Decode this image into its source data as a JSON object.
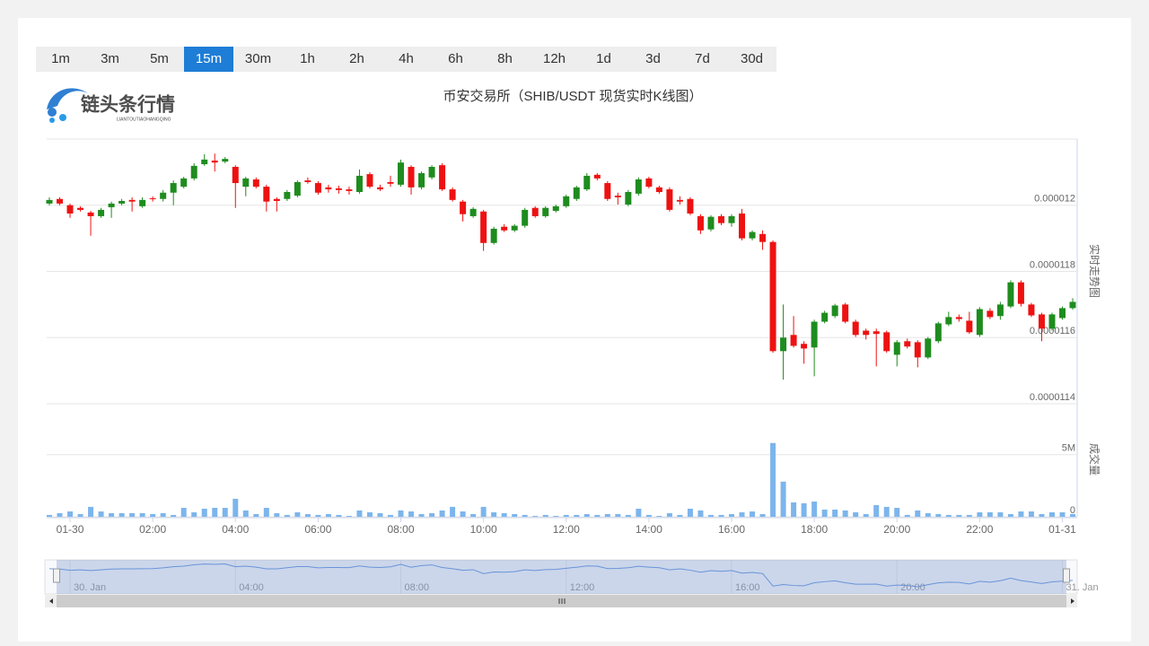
{
  "toolbar": {
    "intervals": [
      "1m",
      "3m",
      "5m",
      "15m",
      "30m",
      "1h",
      "2h",
      "4h",
      "6h",
      "8h",
      "12h",
      "1d",
      "3d",
      "7d",
      "30d"
    ],
    "active_index": 3
  },
  "logo": {
    "name": "链头条行情",
    "pinyin": "LIANTOUTIAOHANGQING"
  },
  "chart_data": {
    "type": "candlestick",
    "title": "币安交易所（SHIB/USDT 现货实时K线图）",
    "y_label": "实时走势图",
    "volume_label": "成交量",
    "up_color": "#1e8c1e",
    "down_color": "#ee1111",
    "volume_color": "#7cb5ec",
    "grid": true,
    "categories": [
      null,
      null,
      "01-30",
      null,
      null,
      null,
      null,
      null,
      null,
      null,
      "02:00",
      null,
      null,
      null,
      null,
      null,
      null,
      null,
      "04:00",
      null,
      null,
      null,
      null,
      null,
      null,
      null,
      "06:00",
      null,
      null,
      null,
      null,
      null,
      null,
      null,
      "08:00",
      null,
      null,
      null,
      null,
      null,
      null,
      null,
      "10:00",
      null,
      null,
      null,
      null,
      null,
      null,
      null,
      "12:00",
      null,
      null,
      null,
      null,
      null,
      null,
      null,
      "14:00",
      null,
      null,
      null,
      null,
      null,
      null,
      null,
      "16:00",
      null,
      null,
      null,
      null,
      null,
      null,
      null,
      "18:00",
      null,
      null,
      null,
      null,
      null,
      null,
      null,
      "20:00",
      null,
      null,
      null,
      null,
      null,
      null,
      null,
      "22:00",
      null,
      null,
      null,
      null,
      null,
      null,
      null,
      "01-31",
      null
    ],
    "open": [
      1.2005e-05,
      1.2019e-05,
      1.2e-05,
      1.1992e-05,
      1.1978e-05,
      1.1967e-05,
      1.1994e-05,
      1.2005e-05,
      1.2016e-05,
      1.1997e-05,
      1.2021e-05,
      1.2019e-05,
      1.2038e-05,
      1.2056e-05,
      1.2081e-05,
      1.2124e-05,
      1.2135e-05,
      1.2132e-05,
      1.2116e-05,
      1.2056e-05,
      1.2078e-05,
      1.2056e-05,
      1.2019e-05,
      1.2019e-05,
      1.2029e-05,
      1.2075e-05,
      1.2067e-05,
      1.2054e-05,
      1.2051e-05,
      1.2048e-05,
      1.204e-05,
      1.2094e-05,
      1.2054e-05,
      1.207e-05,
      1.2062e-05,
      1.2116e-05,
      1.2054e-05,
      1.2084e-05,
      1.2121e-05,
      1.2048e-05,
      1.2011e-05,
      1.1967e-05,
      1.1981e-05,
      1.1886e-05,
      1.1935e-05,
      1.1924e-05,
      1.1938e-05,
      1.1992e-05,
      1.1967e-05,
      1.1983e-05,
      1.1997e-05,
      1.2019e-05,
      1.2048e-05,
      1.2092e-05,
      1.2067e-05,
      1.2029e-05,
      1.2002e-05,
      1.2035e-05,
      1.2081e-05,
      1.2054e-05,
      1.2048e-05,
      1.2016e-05,
      1.2019e-05,
      1.1967e-05,
      1.1927e-05,
      1.1967e-05,
      1.1946e-05,
      1.1975e-05,
      1.19e-05,
      1.1913e-05,
      1.1889e-05,
      1.1559e-05,
      1.1608e-05,
      1.1581e-05,
      1.157e-05,
      1.1648e-05,
      1.1665e-05,
      1.17e-05,
      1.1648e-05,
      1.1621e-05,
      1.1619e-05,
      1.1616e-05,
      1.1548e-05,
      1.1589e-05,
      1.1586e-05,
      1.154e-05,
      1.1589e-05,
      1.164e-05,
      1.1662e-05,
      1.1651e-05,
      1.1608e-05,
      1.1681e-05,
      1.1665e-05,
      1.1694e-05,
      1.1767e-05,
      1.17e-05,
      1.167e-05,
      1.1627e-05,
      1.1659e-05,
      1.1689e-05
    ],
    "high": [
      1.2024e-05,
      1.2024e-05,
      1.2005e-05,
      1.1997e-05,
      1.1983e-05,
      1.1992e-05,
      1.2011e-05,
      1.2019e-05,
      1.2024e-05,
      1.2024e-05,
      1.2027e-05,
      1.2046e-05,
      1.2075e-05,
      1.2086e-05,
      1.2127e-05,
      1.2154e-05,
      1.2156e-05,
      1.2146e-05,
      1.2121e-05,
      1.2086e-05,
      1.2084e-05,
      1.2062e-05,
      1.2024e-05,
      1.2046e-05,
      1.2075e-05,
      1.2084e-05,
      1.2073e-05,
      1.2062e-05,
      1.2059e-05,
      1.2056e-05,
      1.2108e-05,
      1.21e-05,
      1.2062e-05,
      1.2089e-05,
      1.2138e-05,
      1.2121e-05,
      1.2102e-05,
      1.2121e-05,
      1.2127e-05,
      1.2054e-05,
      1.2016e-05,
      1.1994e-05,
      1.1986e-05,
      1.1935e-05,
      1.1943e-05,
      1.1943e-05,
      1.1992e-05,
      1.1997e-05,
      1.1997e-05,
      1.2002e-05,
      1.2032e-05,
      1.2059e-05,
      1.2097e-05,
      1.2097e-05,
      1.2073e-05,
      1.2038e-05,
      1.2046e-05,
      1.2084e-05,
      1.2086e-05,
      1.2059e-05,
      1.2054e-05,
      1.2027e-05,
      1.2024e-05,
      1.1973e-05,
      1.197e-05,
      1.1973e-05,
      1.1973e-05,
      1.1989e-05,
      1.1924e-05,
      1.1924e-05,
      1.1894e-05,
      1.17e-05,
      1.1665e-05,
      1.1589e-05,
      1.1654e-05,
      1.1681e-05,
      1.1702e-05,
      1.1705e-05,
      1.1654e-05,
      1.1627e-05,
      1.1627e-05,
      1.1621e-05,
      1.1592e-05,
      1.1597e-05,
      1.1592e-05,
      1.1602e-05,
      1.1648e-05,
      1.1678e-05,
      1.167e-05,
      1.1678e-05,
      1.1692e-05,
      1.1689e-05,
      1.1708e-05,
      1.1773e-05,
      1.1773e-05,
      1.1705e-05,
      1.1675e-05,
      1.1675e-05,
      1.1694e-05,
      1.1719e-05
    ],
    "low": [
      1.2e-05,
      1.2e-05,
      1.1962e-05,
      1.1981e-05,
      1.1908e-05,
      1.1962e-05,
      1.1962e-05,
      1.2e-05,
      1.1981e-05,
      1.1992e-05,
      1.2011e-05,
      1.2011e-05,
      1.2e-05,
      1.2051e-05,
      1.2075e-05,
      1.2119e-05,
      1.2102e-05,
      1.2127e-05,
      1.1992e-05,
      1.2027e-05,
      1.2051e-05,
      1.1981e-05,
      1.1981e-05,
      1.2013e-05,
      1.2024e-05,
      1.2065e-05,
      1.2032e-05,
      1.2038e-05,
      1.2035e-05,
      1.2032e-05,
      1.2035e-05,
      1.2051e-05,
      1.2043e-05,
      1.2056e-05,
      1.2056e-05,
      1.2032e-05,
      1.2048e-05,
      1.2078e-05,
      1.2043e-05,
      1.2011e-05,
      1.1951e-05,
      1.1962e-05,
      1.1862e-05,
      1.1881e-05,
      1.1919e-05,
      1.1919e-05,
      1.1932e-05,
      1.1962e-05,
      1.1962e-05,
      1.1978e-05,
      1.1992e-05,
      1.2013e-05,
      1.2043e-05,
      1.2075e-05,
      1.2013e-05,
      1.2002e-05,
      1.1997e-05,
      1.2029e-05,
      1.2051e-05,
      1.2035e-05,
      1.1981e-05,
      1.2002e-05,
      1.197e-05,
      1.1913e-05,
      1.1921e-05,
      1.194e-05,
      1.1935e-05,
      1.1894e-05,
      1.1894e-05,
      1.1865e-05,
      1.1554e-05,
      1.1473e-05,
      1.157e-05,
      1.1521e-05,
      1.1483e-05,
      1.1643e-05,
      1.1659e-05,
      1.1643e-05,
      1.1602e-05,
      1.1594e-05,
      1.1513e-05,
      1.1554e-05,
      1.1513e-05,
      1.1567e-05,
      1.151e-05,
      1.1535e-05,
      1.1583e-05,
      1.1635e-05,
      1.1648e-05,
      1.1611e-05,
      1.1602e-05,
      1.1656e-05,
      1.1654e-05,
      1.1689e-05,
      1.1694e-05,
      1.1662e-05,
      1.1589e-05,
      1.1621e-05,
      1.1654e-05,
      1.1684e-05
    ],
    "close": [
      1.2016e-05,
      1.2005e-05,
      1.1975e-05,
      1.1986e-05,
      1.1967e-05,
      1.1986e-05,
      1.2005e-05,
      1.2013e-05,
      1.2011e-05,
      1.2016e-05,
      1.2019e-05,
      1.2038e-05,
      1.2067e-05,
      1.2081e-05,
      1.2119e-05,
      1.2138e-05,
      1.2129e-05,
      1.214e-05,
      1.2067e-05,
      1.2081e-05,
      1.2056e-05,
      1.2011e-05,
      1.2013e-05,
      1.204e-05,
      1.207e-05,
      1.207e-05,
      1.2038e-05,
      1.2048e-05,
      1.2046e-05,
      1.2043e-05,
      1.2089e-05,
      1.2056e-05,
      1.2048e-05,
      1.2065e-05,
      1.2129e-05,
      1.2054e-05,
      1.2097e-05,
      1.2116e-05,
      1.2048e-05,
      1.2016e-05,
      1.1973e-05,
      1.1989e-05,
      1.1886e-05,
      1.1929e-05,
      1.1924e-05,
      1.1938e-05,
      1.1986e-05,
      1.1967e-05,
      1.1992e-05,
      1.1997e-05,
      1.2027e-05,
      1.2054e-05,
      1.2089e-05,
      1.2081e-05,
      1.2019e-05,
      1.2024e-05,
      1.204e-05,
      1.2078e-05,
      1.2056e-05,
      1.204e-05,
      1.1986e-05,
      1.2011e-05,
      1.1975e-05,
      1.1924e-05,
      1.1965e-05,
      1.1946e-05,
      1.1967e-05,
      1.19e-05,
      1.1919e-05,
      1.1889e-05,
      1.1559e-05,
      1.16e-05,
      1.1575e-05,
      1.1567e-05,
      1.1648e-05,
      1.1675e-05,
      1.1697e-05,
      1.1648e-05,
      1.1608e-05,
      1.1608e-05,
      1.1611e-05,
      1.1559e-05,
      1.1586e-05,
      1.1573e-05,
      1.154e-05,
      1.1597e-05,
      1.1643e-05,
      1.1662e-05,
      1.1656e-05,
      1.1616e-05,
      1.1686e-05,
      1.1662e-05,
      1.17e-05,
      1.1767e-05,
      1.1702e-05,
      1.1667e-05,
      1.1627e-05,
      1.167e-05,
      1.1689e-05,
      1.1708e-05
    ],
    "volume": [
      150000,
      290000,
      430000,
      220000,
      800000,
      430000,
      290000,
      290000,
      290000,
      290000,
      220000,
      290000,
      150000,
      720000,
      360000,
      650000,
      720000,
      720000,
      1450000,
      510000,
      220000,
      720000,
      290000,
      150000,
      360000,
      220000,
      150000,
      220000,
      150000,
      70000,
      510000,
      360000,
      290000,
      150000,
      510000,
      430000,
      220000,
      290000,
      510000,
      800000,
      430000,
      220000,
      800000,
      360000,
      290000,
      220000,
      150000,
      70000,
      150000,
      70000,
      150000,
      150000,
      220000,
      150000,
      220000,
      220000,
      150000,
      650000,
      150000,
      70000,
      290000,
      150000,
      650000,
      510000,
      150000,
      150000,
      220000,
      360000,
      430000,
      220000,
      5940000,
      2830000,
      1160000,
      1090000,
      1230000,
      580000,
      580000,
      510000,
      360000,
      220000,
      940000,
      800000,
      720000,
      150000,
      510000,
      290000,
      220000,
      150000,
      150000,
      150000,
      360000,
      360000,
      360000,
      220000,
      430000,
      430000,
      220000,
      360000,
      360000,
      220000
    ],
    "ylim": [
      1.14e-05,
      1.22e-05
    ],
    "yticks": [
      1.14e-05,
      1.16e-05,
      1.18e-05,
      1.2e-05
    ],
    "volume_ylim": [
      0,
      9100000
    ],
    "volume_yticks": [
      0,
      {
        "value": 5000000,
        "label": "5M"
      }
    ]
  },
  "navigator": {
    "labels": [
      "30. Jan",
      "04:00",
      "08:00",
      "12:00",
      "16:00",
      "20:00",
      "31. Jan"
    ]
  }
}
